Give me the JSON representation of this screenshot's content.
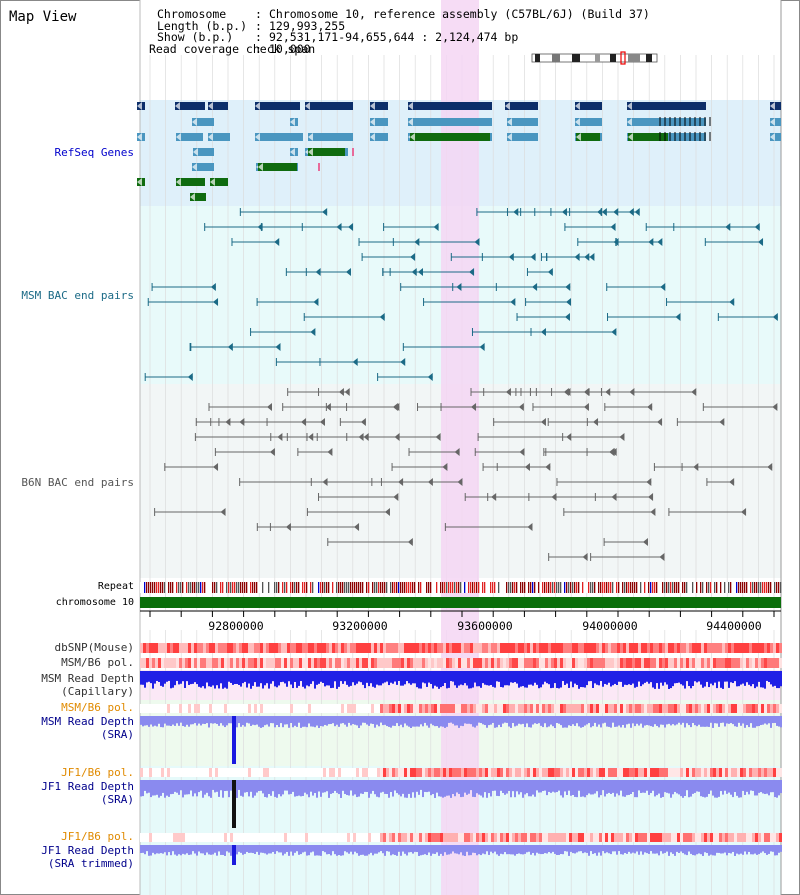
{
  "title": "Map View",
  "info": {
    "chromosome_label": "Chromosome",
    "chromosome_value": "Chromosome 10, reference assembly (C57BL/6J) (Build 37)",
    "length_label": "Length (b.p.)",
    "length_value": "129,993,255",
    "show_label": "Show (b.p.)",
    "show_value": "92,531,171-94,655,644 : 2,124,474 bp",
    "coverage_label": "Read coverage check span",
    "coverage_value": "10,000"
  },
  "tracks": {
    "refseq": "RefSeq Genes",
    "msm_bac": "MSM BAC end pairs",
    "b6n_bac": "B6N BAC end pairs",
    "repeat": "Repeat",
    "chromosome": "chromosome 10",
    "dbsnp": "dbSNP(Mouse)",
    "msm_b6_pol": "MSM/B6 pol.",
    "msm_depth_cap_1": "MSM Read Depth",
    "msm_depth_cap_2": "(Capillary)",
    "msm_b6_pol_2": "MSM/B6 pol.",
    "msm_depth_sra_1": "MSM Read Depth",
    "msm_depth_sra_2": "(SRA)",
    "jf1_b6_pol": "JF1/B6 pol.",
    "jf1_depth_sra_1": "JF1 Read Depth",
    "jf1_depth_sra_2": "(SRA)",
    "jf1_b6_pol_2": "JF1/B6 pol.",
    "jf1_depth_trim_1": "JF1 Read Depth",
    "jf1_depth_trim_2": "(SRA trimmed)"
  },
  "axis_ticks": [
    "92800000",
    "93200000",
    "93600000",
    "94000000",
    "94400000"
  ],
  "colors": {
    "refseq_bg": "#dff0fa",
    "bac_bg": "#e8fafa",
    "b6n_bg": "#f2f6f6",
    "highlight": "#f5d6f3",
    "gene_dark": "#0c2e6a",
    "gene_mid": "#4a96c0",
    "gene_green": "#0f6b0f",
    "msm_line": "#1b6a86",
    "b6n_line": "#666666",
    "depth_blue": "#2020e6",
    "depth_light": "#8a8aef",
    "pol_red": "#e02020",
    "pol_orange": "#e08a00",
    "track_label_blue": "#00008b",
    "chrom_green": "#0a6e0a"
  }
}
